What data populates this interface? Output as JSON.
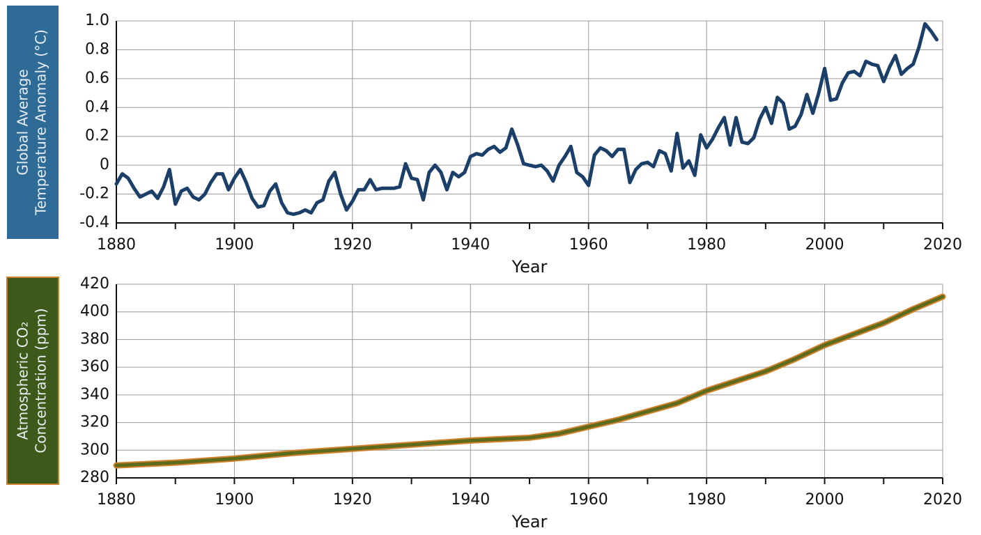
{
  "chart_data": [
    {
      "type": "line",
      "ylabel": [
        "Global Average",
        "Temperature Anomaly (°C)"
      ],
      "xlabel": "Year",
      "color": "#1b3f68",
      "label_box_color": "#2e6b96",
      "x": [
        1880,
        1881,
        1882,
        1883,
        1884,
        1885,
        1886,
        1887,
        1888,
        1889,
        1890,
        1891,
        1892,
        1893,
        1894,
        1895,
        1896,
        1897,
        1898,
        1899,
        1900,
        1901,
        1902,
        1903,
        1904,
        1905,
        1906,
        1907,
        1908,
        1909,
        1910,
        1911,
        1912,
        1913,
        1914,
        1915,
        1916,
        1917,
        1918,
        1919,
        1920,
        1921,
        1922,
        1923,
        1924,
        1925,
        1926,
        1927,
        1928,
        1929,
        1930,
        1931,
        1932,
        1933,
        1934,
        1935,
        1936,
        1937,
        1938,
        1939,
        1940,
        1941,
        1942,
        1943,
        1944,
        1945,
        1946,
        1947,
        1948,
        1949,
        1950,
        1951,
        1952,
        1953,
        1954,
        1955,
        1956,
        1957,
        1958,
        1959,
        1960,
        1961,
        1962,
        1963,
        1964,
        1965,
        1966,
        1967,
        1968,
        1969,
        1970,
        1971,
        1972,
        1973,
        1974,
        1975,
        1976,
        1977,
        1978,
        1979,
        1980,
        1981,
        1982,
        1983,
        1984,
        1985,
        1986,
        1987,
        1988,
        1989,
        1990,
        1991,
        1992,
        1993,
        1994,
        1995,
        1996,
        1997,
        1998,
        1999,
        2000,
        2001,
        2002,
        2003,
        2004,
        2005,
        2006,
        2007,
        2008,
        2009,
        2010,
        2011,
        2012,
        2013,
        2014,
        2015,
        2016,
        2017,
        2018,
        2019
      ],
      "values": [
        -0.13,
        -0.06,
        -0.09,
        -0.16,
        -0.22,
        -0.2,
        -0.18,
        -0.23,
        -0.15,
        -0.03,
        -0.27,
        -0.18,
        -0.16,
        -0.22,
        -0.24,
        -0.2,
        -0.12,
        -0.06,
        -0.06,
        -0.17,
        -0.09,
        -0.03,
        -0.12,
        -0.23,
        -0.29,
        -0.28,
        -0.18,
        -0.13,
        -0.26,
        -0.33,
        -0.34,
        -0.33,
        -0.31,
        -0.33,
        -0.26,
        -0.24,
        -0.11,
        -0.05,
        -0.2,
        -0.31,
        -0.25,
        -0.17,
        -0.17,
        -0.1,
        -0.17,
        -0.16,
        -0.16,
        -0.16,
        -0.15,
        0.01,
        -0.09,
        -0.1,
        -0.24,
        -0.05,
        0.0,
        -0.05,
        -0.17,
        -0.05,
        -0.08,
        -0.05,
        0.06,
        0.08,
        0.07,
        0.11,
        0.13,
        0.09,
        0.12,
        0.25,
        0.14,
        0.01,
        0.0,
        -0.01,
        0.0,
        -0.04,
        -0.11,
        0.0,
        0.06,
        0.13,
        -0.05,
        -0.08,
        -0.14,
        0.07,
        0.12,
        0.1,
        0.06,
        0.11,
        0.11,
        -0.12,
        -0.03,
        0.01,
        0.02,
        -0.01,
        0.1,
        0.08,
        -0.04,
        0.22,
        -0.02,
        0.03,
        -0.07,
        0.21,
        0.12,
        0.18,
        0.26,
        0.33,
        0.14,
        0.33,
        0.16,
        0.15,
        0.19,
        0.32,
        0.4,
        0.29,
        0.47,
        0.43,
        0.25,
        0.27,
        0.35,
        0.49,
        0.36,
        0.5,
        0.67,
        0.45,
        0.46,
        0.57,
        0.64,
        0.65,
        0.62,
        0.72,
        0.7,
        0.69,
        0.58,
        0.68,
        0.76,
        0.63,
        0.67,
        0.7,
        0.82,
        0.98,
        0.93,
        0.87
      ],
      "xlim": [
        1880,
        2020
      ],
      "xticks": [
        1880,
        1900,
        1920,
        1940,
        1960,
        1980,
        2000,
        2020
      ],
      "xminorticks": [
        1890,
        1910,
        1930,
        1950,
        1970,
        1990,
        2010
      ],
      "ylim": [
        -0.4,
        1.0
      ],
      "yticks": [
        -0.4,
        -0.2,
        0,
        0.2,
        0.4,
        0.6,
        0.8,
        {
          "value": 1,
          "label": "1.0"
        }
      ],
      "grid": true
    },
    {
      "type": "line",
      "ylabel": [
        "Atmospheric CO₂",
        "Concentration (ppm)"
      ],
      "xlabel": "Year",
      "color": "#5d6b1c",
      "edge_color": "#d0822c",
      "label_box_color": "#3e5a1a",
      "label_box_edge_color": "#c8802a",
      "x": [
        1880,
        1890,
        1900,
        1910,
        1920,
        1930,
        1940,
        1950,
        1955,
        1960,
        1965,
        1970,
        1975,
        1980,
        1985,
        1990,
        1995,
        2000,
        2005,
        2010,
        2015,
        2020
      ],
      "values": [
        289,
        291,
        294,
        298,
        301,
        304,
        307,
        309,
        312,
        317,
        322,
        328,
        334,
        343,
        350,
        357,
        366,
        376,
        384,
        392,
        402,
        411
      ],
      "xlim": [
        1880,
        2020
      ],
      "xticks": [
        1880,
        1900,
        1920,
        1940,
        1960,
        1980,
        2000,
        2020
      ],
      "xminorticks": [
        1890,
        1910,
        1930,
        1950,
        1970,
        1990,
        2010
      ],
      "ylim": [
        280,
        420
      ],
      "yticks": [
        280,
        300,
        320,
        340,
        360,
        380,
        400,
        420
      ],
      "grid": true
    }
  ]
}
